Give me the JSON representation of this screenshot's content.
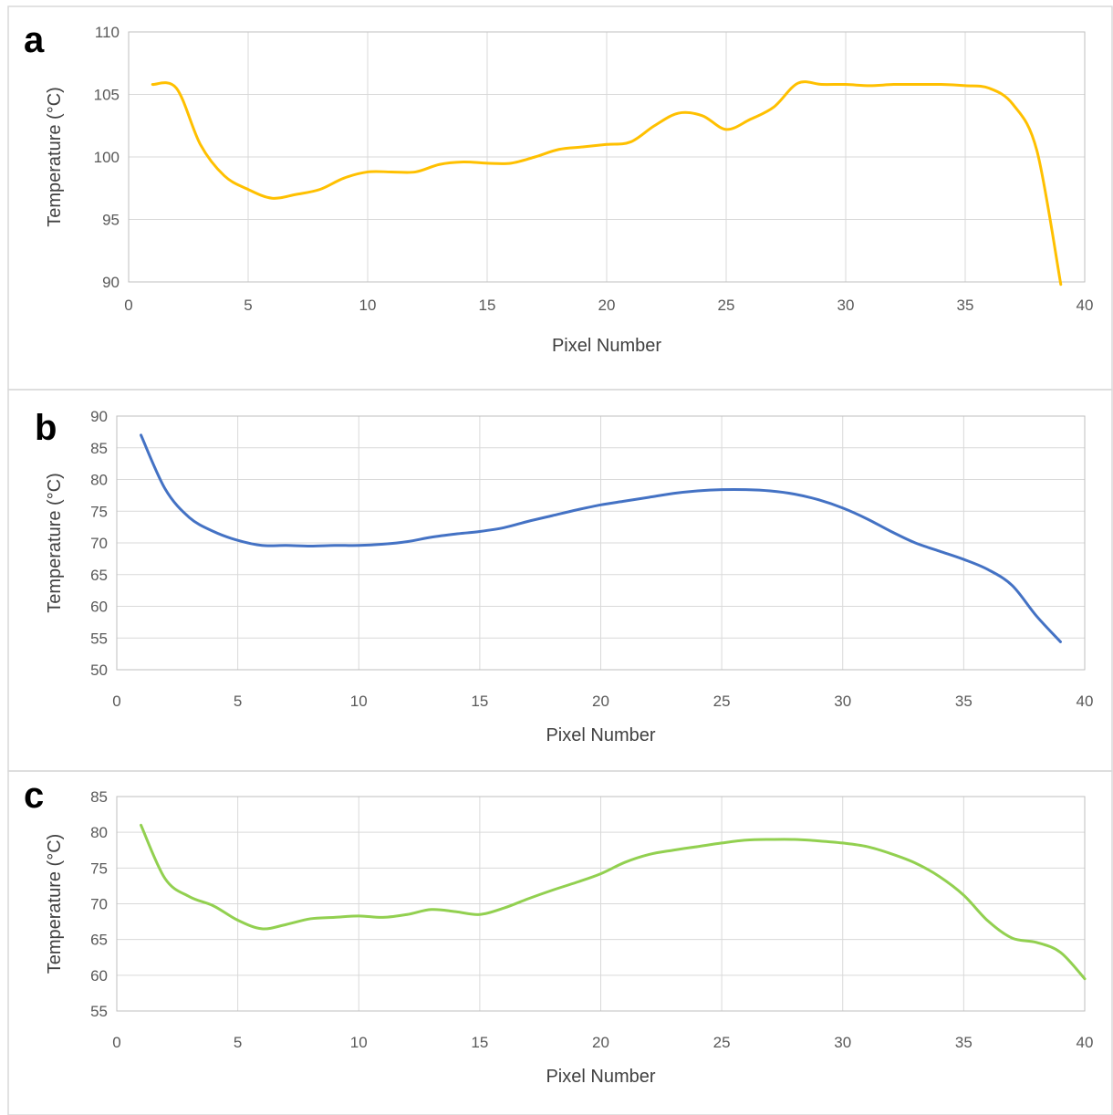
{
  "chart_data": [
    {
      "type": "line",
      "panel_label": "a",
      "xlabel": "Pixel Number",
      "ylabel": "Temperature (°C)",
      "xlim": [
        0,
        40
      ],
      "ylim": [
        90,
        110
      ],
      "x_ticks": [
        "0",
        "5",
        "10",
        "15",
        "20",
        "25",
        "30",
        "35",
        "40"
      ],
      "y_ticks": [
        "90",
        "95",
        "100",
        "105",
        "110"
      ],
      "grid": true,
      "color": "#FFC000",
      "series": [
        {
          "x": [
            1,
            2,
            3,
            4,
            5,
            6,
            7,
            8,
            9,
            10,
            11,
            12,
            13,
            14,
            15,
            16,
            17,
            18,
            19,
            20,
            21,
            22,
            23,
            24,
            25,
            26,
            27,
            28,
            29,
            30,
            31,
            32,
            33,
            34,
            35,
            36,
            37,
            38,
            39
          ],
          "y": [
            105.8,
            105.5,
            101.0,
            98.5,
            97.4,
            96.7,
            97.0,
            97.4,
            98.3,
            98.8,
            98.8,
            98.8,
            99.4,
            99.6,
            99.5,
            99.5,
            100.0,
            100.6,
            100.8,
            101.0,
            101.2,
            102.5,
            103.5,
            103.3,
            102.2,
            103.0,
            104.0,
            105.9,
            105.8,
            105.8,
            105.7,
            105.8,
            105.8,
            105.8,
            105.7,
            105.5,
            104.2,
            100.5,
            89.8
          ]
        }
      ]
    },
    {
      "type": "line",
      "panel_label": "b",
      "xlabel": "Pixel Number",
      "ylabel": "Temperature (°C)",
      "xlim": [
        0,
        40
      ],
      "ylim": [
        50,
        90
      ],
      "x_ticks": [
        "0",
        "5",
        "10",
        "15",
        "20",
        "25",
        "30",
        "35",
        "40"
      ],
      "y_ticks": [
        "50",
        "55",
        "60",
        "65",
        "70",
        "75",
        "80",
        "85",
        "90"
      ],
      "grid": true,
      "color": "#4472C4",
      "series": [
        {
          "x": [
            1,
            2,
            3,
            4,
            5,
            6,
            7,
            8,
            9,
            10,
            11,
            12,
            13,
            14,
            15,
            16,
            17,
            18,
            19,
            20,
            21,
            22,
            23,
            24,
            25,
            26,
            27,
            28,
            29,
            30,
            31,
            32,
            33,
            34,
            35,
            36,
            37,
            38,
            39
          ],
          "y": [
            87.0,
            78.5,
            74.0,
            71.8,
            70.4,
            69.6,
            69.6,
            69.5,
            69.6,
            69.6,
            69.8,
            70.2,
            70.9,
            71.4,
            71.8,
            72.4,
            73.4,
            74.3,
            75.2,
            76.0,
            76.6,
            77.2,
            77.8,
            78.2,
            78.4,
            78.4,
            78.2,
            77.7,
            76.8,
            75.5,
            73.8,
            71.8,
            70.0,
            68.7,
            67.4,
            65.8,
            63.3,
            58.5,
            54.4
          ]
        }
      ]
    },
    {
      "type": "line",
      "panel_label": "c",
      "xlabel": "Pixel Number",
      "ylabel": "Temperature (°C)",
      "xlim": [
        0,
        40
      ],
      "ylim": [
        55,
        85
      ],
      "x_ticks": [
        "0",
        "5",
        "10",
        "15",
        "20",
        "25",
        "30",
        "35",
        "40"
      ],
      "y_ticks": [
        "55",
        "60",
        "65",
        "70",
        "75",
        "80",
        "85"
      ],
      "grid": true,
      "color": "#92D050",
      "series": [
        {
          "x": [
            1,
            2,
            3,
            4,
            5,
            6,
            7,
            8,
            9,
            10,
            11,
            12,
            13,
            14,
            15,
            16,
            17,
            18,
            19,
            20,
            21,
            22,
            23,
            24,
            25,
            26,
            27,
            28,
            29,
            30,
            31,
            32,
            33,
            34,
            35,
            36,
            37,
            38,
            39,
            40
          ],
          "y": [
            81.0,
            73.5,
            71.0,
            69.7,
            67.7,
            66.5,
            67.1,
            67.9,
            68.1,
            68.3,
            68.1,
            68.5,
            69.2,
            68.9,
            68.5,
            69.4,
            70.7,
            71.9,
            73.0,
            74.2,
            75.8,
            76.9,
            77.5,
            78.0,
            78.5,
            78.9,
            79.0,
            79.0,
            78.8,
            78.5,
            78.0,
            77.0,
            75.7,
            73.8,
            71.2,
            67.6,
            65.2,
            64.6,
            63.2,
            59.5
          ]
        }
      ]
    }
  ]
}
